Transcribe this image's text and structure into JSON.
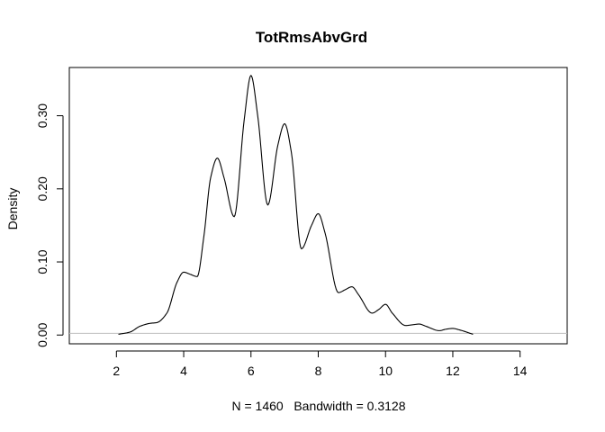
{
  "chart_data": {
    "type": "line",
    "title": "TotRmsAbvGrd",
    "xlabel": "N = 1460   Bandwidth = 0.3128",
    "ylabel": "Density",
    "xlim": [
      0.6,
      15.4
    ],
    "ylim": [
      -0.012,
      0.366
    ],
    "x_ticks": [
      2,
      4,
      6,
      8,
      10,
      12,
      14
    ],
    "x_tick_labels": [
      "2",
      "4",
      "6",
      "8",
      "10",
      "12",
      "14"
    ],
    "y_ticks": [
      0.0,
      0.1,
      0.2,
      0.3
    ],
    "y_tick_labels": [
      "0.00",
      "0.10",
      "0.20",
      "0.30"
    ],
    "zero_line_color": "#bebebe",
    "line_color": "#000000",
    "series": [
      {
        "x": [
          2.06,
          2.4,
          2.7,
          3.0,
          3.2,
          3.5,
          3.8,
          4.0,
          4.2,
          4.4,
          4.6,
          4.8,
          5.0,
          5.2,
          5.5,
          5.8,
          6.0,
          6.2,
          6.5,
          6.8,
          7.0,
          7.2,
          7.5,
          7.8,
          8.0,
          8.2,
          8.6,
          8.8,
          9.0,
          9.2,
          9.6,
          9.8,
          10.0,
          10.2,
          10.6,
          10.8,
          11.0,
          11.2,
          11.6,
          11.8,
          12.0,
          12.2,
          12.6
        ],
        "y": [
          0.001,
          0.004,
          0.012,
          0.016,
          0.017,
          0.03,
          0.072,
          0.086,
          0.083,
          0.08,
          0.135,
          0.215,
          0.242,
          0.215,
          0.162,
          0.295,
          0.355,
          0.3,
          0.178,
          0.26,
          0.289,
          0.25,
          0.118,
          0.15,
          0.166,
          0.14,
          0.058,
          0.062,
          0.066,
          0.055,
          0.03,
          0.035,
          0.042,
          0.03,
          0.013,
          0.014,
          0.015,
          0.012,
          0.006,
          0.008,
          0.009,
          0.007,
          0.001
        ]
      }
    ]
  }
}
